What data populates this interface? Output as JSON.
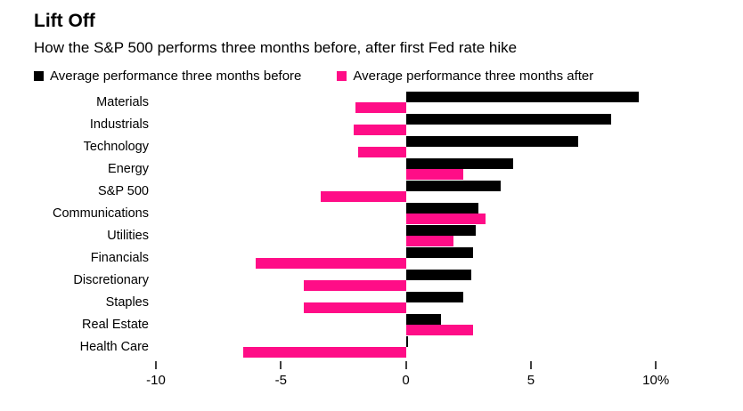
{
  "colors": {
    "before": "#000000",
    "after": "#ff0d87",
    "tick_mark": "#404040",
    "text": "#000000",
    "background": "#ffffff"
  },
  "chart_data": {
    "type": "bar",
    "orientation": "horizontal",
    "title": "Lift Off",
    "subtitle": "How the S&P 500 performs three months before, after first Fed rate hike",
    "categories": [
      "Materials",
      "Industrials",
      "Technology",
      "Energy",
      "S&P 500",
      "Communications",
      "Utilities",
      "Financials",
      "Discretionary",
      "Staples",
      "Real Estate",
      "Health Care"
    ],
    "series": [
      {
        "name": "Average performance three months before",
        "color": "#000000",
        "values": [
          9.3,
          8.2,
          6.9,
          4.3,
          3.8,
          2.9,
          2.8,
          2.7,
          2.6,
          2.3,
          1.4,
          0.1
        ]
      },
      {
        "name": "Average performance three months after",
        "color": "#ff0d87",
        "values": [
          -2.0,
          -2.1,
          -1.9,
          2.3,
          -3.4,
          3.2,
          1.9,
          -6.0,
          -4.1,
          -4.1,
          2.7,
          -6.5
        ]
      }
    ],
    "xlabel": "",
    "ylabel": "",
    "unit": "%",
    "xlim": [
      -10,
      10.6
    ],
    "xticks": [
      -10,
      -5,
      0,
      5,
      10
    ],
    "xtick_labels": [
      "-10",
      "-5",
      "0",
      "5",
      "10%"
    ],
    "grid": false,
    "legend_position": "top"
  }
}
